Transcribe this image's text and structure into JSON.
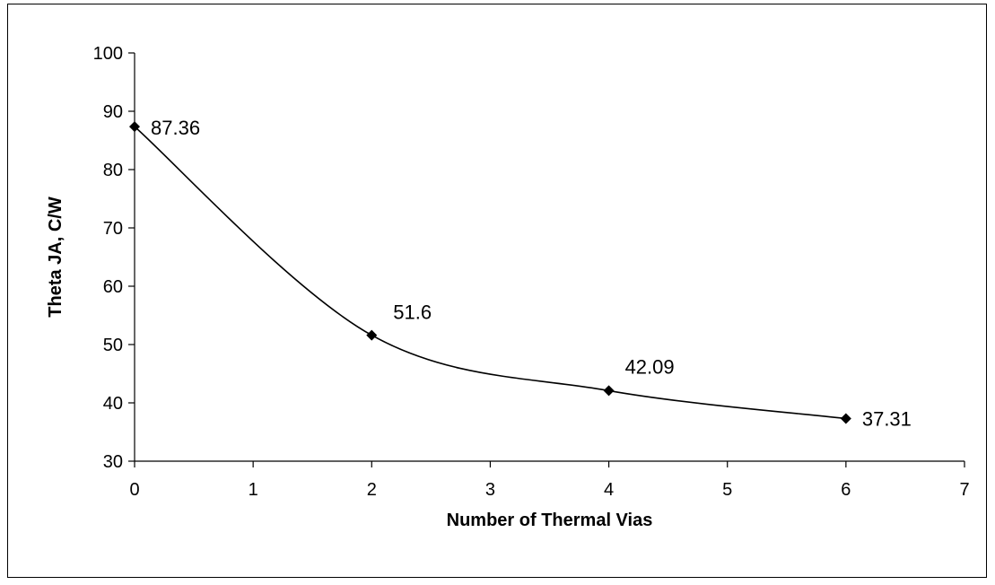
{
  "chart_data": {
    "type": "line",
    "title": "",
    "xlabel": "Number of Thermal Vias",
    "ylabel": "Theta JA, C/W",
    "xlim": [
      0,
      7
    ],
    "ylim": [
      30,
      100
    ],
    "x_ticks": [
      0,
      1,
      2,
      3,
      4,
      5,
      6,
      7
    ],
    "y_ticks": [
      30,
      40,
      50,
      60,
      70,
      80,
      90,
      100
    ],
    "grid": false,
    "legend": "none",
    "smoothed": true,
    "series": [
      {
        "x": [
          0,
          2,
          4,
          6
        ],
        "y": [
          87.36,
          51.6,
          42.09,
          37.31
        ],
        "data_labels": [
          "87.36",
          "51.6",
          "42.09",
          "37.31"
        ],
        "marker": "diamond",
        "color": "#000000"
      }
    ]
  }
}
